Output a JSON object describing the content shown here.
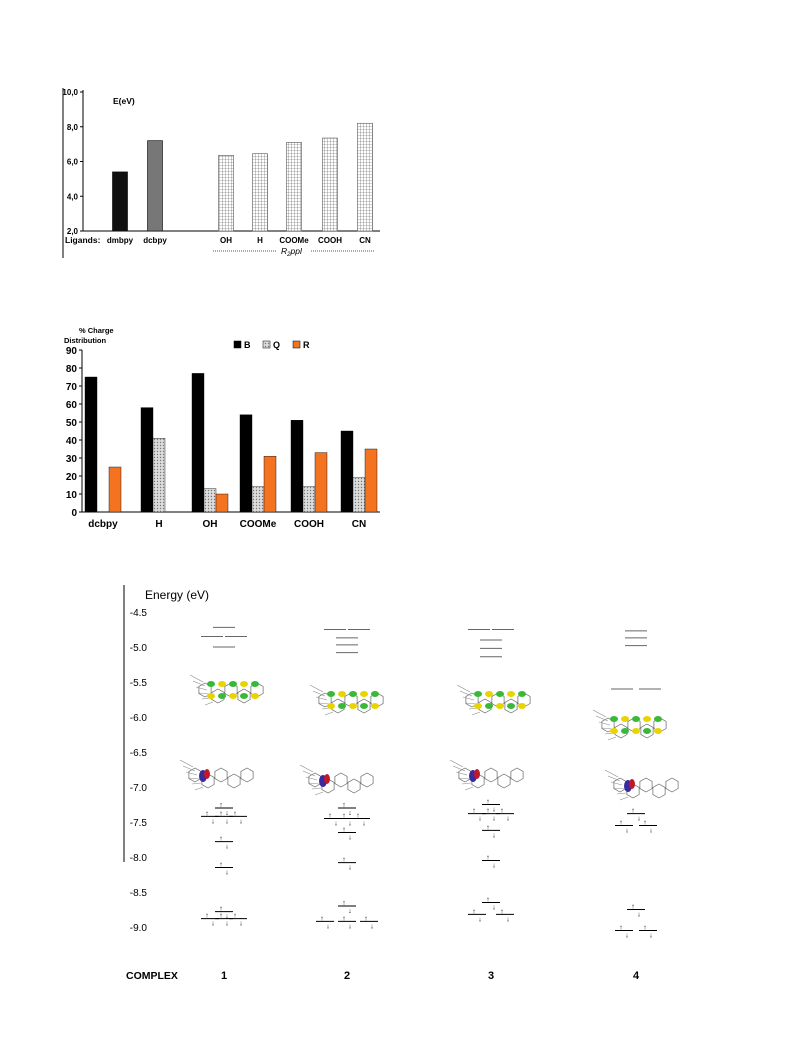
{
  "chart_data": [
    {
      "type": "bar",
      "ylabel": "E(eV)",
      "ylim": [
        2.0,
        10.0
      ],
      "yticks": [
        "2,0",
        "4,0",
        "6,0",
        "8,0",
        "10,0"
      ],
      "ligands_label": "Ligands:",
      "group_label": "R",
      "group_label_sub": "2",
      "group_label_rest": "ppl",
      "categories": [
        "dmbpy",
        "dcbpy",
        "OH",
        "H",
        "COOMe",
        "COOH",
        "CN"
      ],
      "values": [
        5.4,
        7.2,
        6.35,
        6.45,
        7.1,
        7.35,
        8.2
      ],
      "colors": [
        "#111111",
        "#777777",
        "grid",
        "grid",
        "grid",
        "grid",
        "grid"
      ]
    },
    {
      "type": "bar",
      "ylabel_line1": "% Charge",
      "ylabel_line2": "Distribution",
      "ylim": [
        0,
        90
      ],
      "yticks": [
        "0",
        "10",
        "20",
        "30",
        "40",
        "50",
        "60",
        "70",
        "80",
        "90"
      ],
      "categories": [
        "dcbpy",
        "H",
        "OH",
        "COOMe",
        "COOH",
        "CN"
      ],
      "series": [
        {
          "name": "B",
          "color": "#000000",
          "values": [
            75,
            58,
            77,
            54,
            51,
            45
          ]
        },
        {
          "name": "Q",
          "color": "#bbbbbb",
          "values": [
            0,
            41,
            13,
            14,
            14,
            19
          ]
        },
        {
          "name": "R",
          "color": "#f47321",
          "values": [
            25,
            0,
            10,
            31,
            33,
            35
          ]
        }
      ],
      "legend": "top"
    },
    {
      "type": "energy-level-diagram",
      "ylabel": "Energy (eV)",
      "ylim": [
        -9.2,
        -4.3
      ],
      "yticks": [
        "-4.5",
        "-5.0",
        "-5.5",
        "-6.0",
        "-6.5",
        "-7.0",
        "-7.5",
        "-8.0",
        "-8.5",
        "-9.0"
      ],
      "xlabel": "COMPLEX",
      "complexes": [
        "1",
        "2",
        "3",
        "4"
      ],
      "levels": {
        "complex1": {
          "empty": [
            -4.72,
            -4.85,
            -4.85,
            -5.0
          ],
          "occupied": [
            -7.42,
            -7.42,
            -7.42,
            -7.3,
            -7.78,
            -8.15,
            -8.88,
            -8.88,
            -8.88,
            -8.78
          ]
        },
        "complex2": {
          "empty": [
            -4.75,
            -4.75,
            -4.87,
            -4.97,
            -5.08
          ],
          "occupied": [
            -7.45,
            -7.45,
            -7.45,
            -7.3,
            -7.65,
            -8.08,
            -8.92,
            -8.92,
            -8.92,
            -8.7
          ]
        },
        "complex3": {
          "empty": [
            -4.75,
            -4.75,
            -4.9,
            -5.02,
            -5.14
          ],
          "occupied": [
            -7.38,
            -7.38,
            -7.38,
            -7.25,
            -7.62,
            -8.05,
            -8.82,
            -8.82,
            -8.65
          ]
        },
        "complex4": {
          "empty": [
            -4.77,
            -4.87,
            -4.98,
            -5.6,
            -5.6
          ],
          "occupied": [
            -7.55,
            -7.55,
            -7.38,
            -8.75,
            -9.05,
            -9.05
          ]
        }
      }
    }
  ]
}
